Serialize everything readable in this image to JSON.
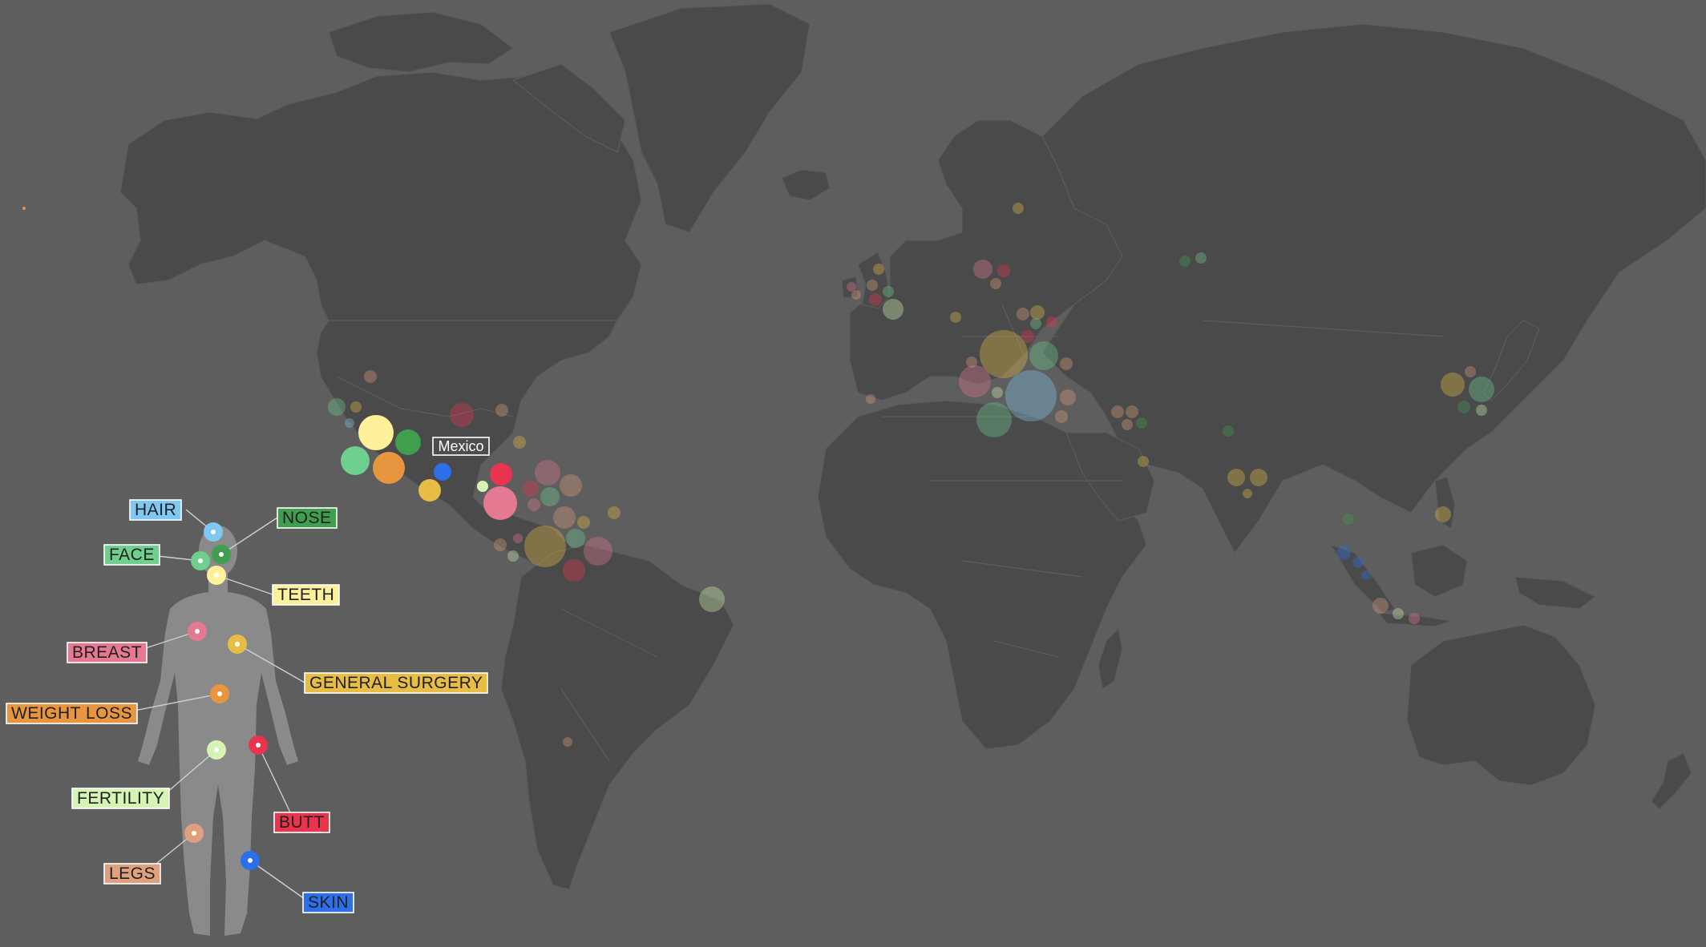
{
  "tooltip": {
    "country": "Mexico"
  },
  "categories": [
    {
      "key": "hair",
      "label": "HAIR",
      "color": "#7ec8f2"
    },
    {
      "key": "nose",
      "label": "NOSE",
      "color": "#3f9f4f"
    },
    {
      "key": "face",
      "label": "FACE",
      "color": "#6fcf8f"
    },
    {
      "key": "teeth",
      "label": "TEETH",
      "color": "#fff09a"
    },
    {
      "key": "breast",
      "label": "BREAST",
      "color": "#e47991"
    },
    {
      "key": "general_surgery",
      "label": "GENERAL SURGERY",
      "color": "#e8bd45"
    },
    {
      "key": "weight_loss",
      "label": "WEIGHT LOSS",
      "color": "#e8953f"
    },
    {
      "key": "fertility",
      "label": "FERTILITY",
      "color": "#d6f5b5"
    },
    {
      "key": "butt",
      "label": "BUTT",
      "color": "#e8344d"
    },
    {
      "key": "legs",
      "label": "LEGS",
      "color": "#e0a07e"
    },
    {
      "key": "skin",
      "label": "SKIN",
      "color": "#2c6fe8"
    }
  ],
  "colors": {
    "background": "#5e5e5e",
    "land": "#4a4a4a",
    "body_silhouette": "#8a8a8a"
  }
}
